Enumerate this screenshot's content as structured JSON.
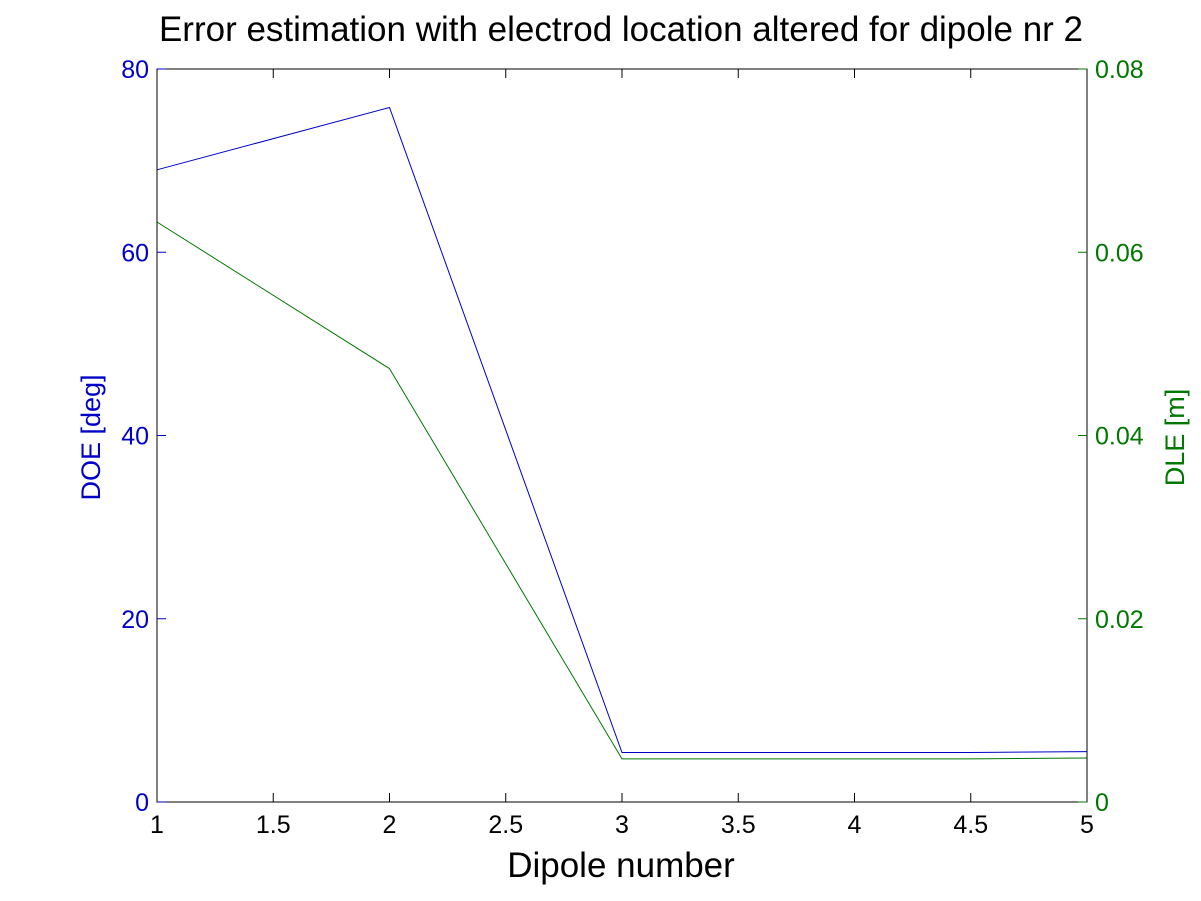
{
  "colors": {
    "left_axis": "#0000c8",
    "right_axis": "#007800",
    "frame": "#000000"
  },
  "chart_data": {
    "type": "line",
    "title": "Error estimation with electrod location altered for dipole nr 2",
    "xlabel": "Dipole number",
    "ylabel_left": "DOE [deg]",
    "ylabel_right": "DLE [m]",
    "xlim": [
      1,
      5
    ],
    "ylim_left": [
      0,
      80
    ],
    "ylim_right": [
      0,
      0.08
    ],
    "grid": false,
    "x_ticks": [
      "1",
      "1.5",
      "2",
      "2.5",
      "3",
      "3.5",
      "4",
      "4.5",
      "5"
    ],
    "y_left_ticks": [
      "0",
      "20",
      "40",
      "60",
      "80"
    ],
    "y_right_ticks": [
      "0",
      "0.02",
      "0.04",
      "0.06",
      "0.08"
    ],
    "series": [
      {
        "axis": "left",
        "color": "#0000c8",
        "x": [
          1,
          2,
          3,
          4,
          4.5,
          5
        ],
        "values": [
          69,
          75.8,
          5.4,
          5.4,
          5.4,
          5.5
        ]
      },
      {
        "axis": "right",
        "color": "#007800",
        "x": [
          1,
          2,
          3,
          4,
          4.5,
          5
        ],
        "values": [
          0.0633,
          0.0473,
          0.0047,
          0.0047,
          0.0047,
          0.0048
        ]
      }
    ]
  }
}
